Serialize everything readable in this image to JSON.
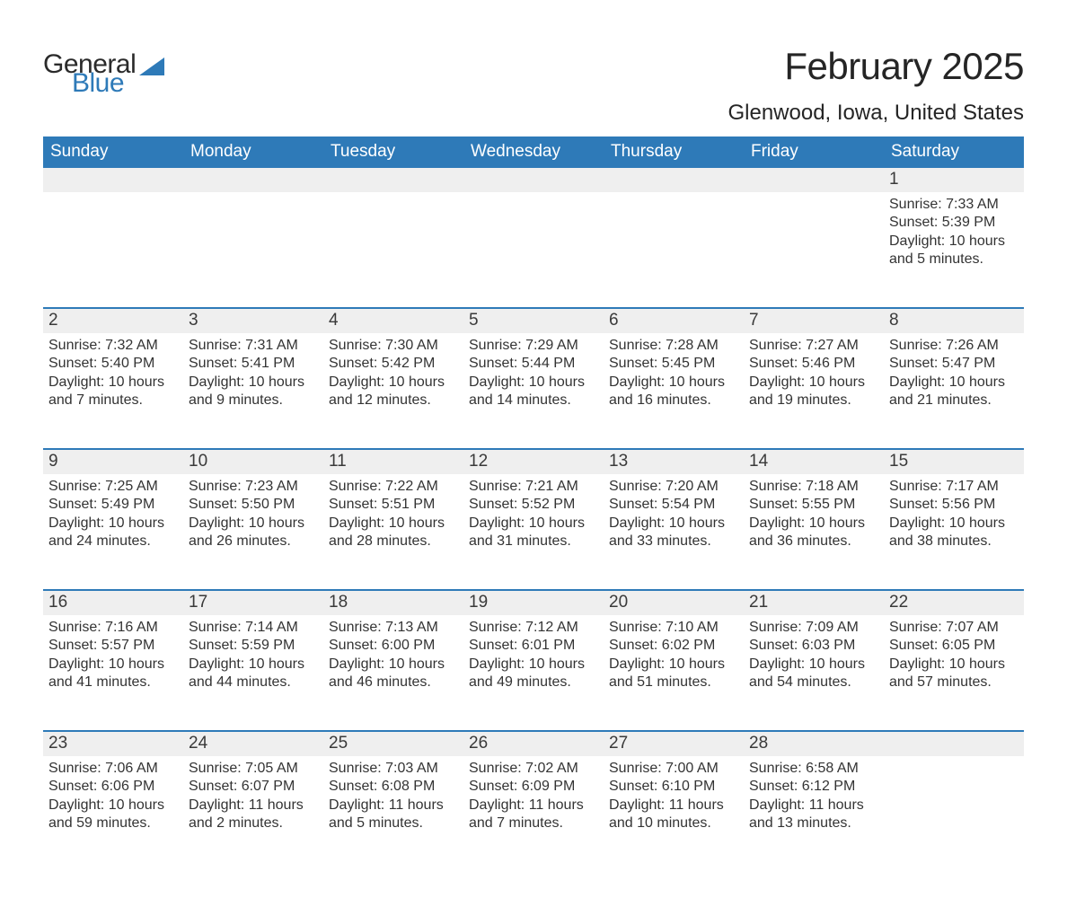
{
  "logo": {
    "text1": "General",
    "text2": "Blue",
    "glyph_color": "#2e7ab8"
  },
  "title": "February 2025",
  "location": "Glenwood, Iowa, United States",
  "colors": {
    "header_bg": "#2e7ab8",
    "header_text": "#ffffff",
    "daynum_bg": "#efefef",
    "rule": "#2e7ab8",
    "body_text": "#333333"
  },
  "typography": {
    "title_fontsize": 42,
    "location_fontsize": 24,
    "weekday_fontsize": 19,
    "daynum_fontsize": 19,
    "detail_fontsize": 16
  },
  "weekdays": [
    "Sunday",
    "Monday",
    "Tuesday",
    "Wednesday",
    "Thursday",
    "Friday",
    "Saturday"
  ],
  "weeks": [
    [
      null,
      null,
      null,
      null,
      null,
      null,
      {
        "n": "1",
        "sunrise": "Sunrise: 7:33 AM",
        "sunset": "Sunset: 5:39 PM",
        "day1": "Daylight: 10 hours",
        "day2": "and 5 minutes."
      }
    ],
    [
      {
        "n": "2",
        "sunrise": "Sunrise: 7:32 AM",
        "sunset": "Sunset: 5:40 PM",
        "day1": "Daylight: 10 hours",
        "day2": "and 7 minutes."
      },
      {
        "n": "3",
        "sunrise": "Sunrise: 7:31 AM",
        "sunset": "Sunset: 5:41 PM",
        "day1": "Daylight: 10 hours",
        "day2": "and 9 minutes."
      },
      {
        "n": "4",
        "sunrise": "Sunrise: 7:30 AM",
        "sunset": "Sunset: 5:42 PM",
        "day1": "Daylight: 10 hours",
        "day2": "and 12 minutes."
      },
      {
        "n": "5",
        "sunrise": "Sunrise: 7:29 AM",
        "sunset": "Sunset: 5:44 PM",
        "day1": "Daylight: 10 hours",
        "day2": "and 14 minutes."
      },
      {
        "n": "6",
        "sunrise": "Sunrise: 7:28 AM",
        "sunset": "Sunset: 5:45 PM",
        "day1": "Daylight: 10 hours",
        "day2": "and 16 minutes."
      },
      {
        "n": "7",
        "sunrise": "Sunrise: 7:27 AM",
        "sunset": "Sunset: 5:46 PM",
        "day1": "Daylight: 10 hours",
        "day2": "and 19 minutes."
      },
      {
        "n": "8",
        "sunrise": "Sunrise: 7:26 AM",
        "sunset": "Sunset: 5:47 PM",
        "day1": "Daylight: 10 hours",
        "day2": "and 21 minutes."
      }
    ],
    [
      {
        "n": "9",
        "sunrise": "Sunrise: 7:25 AM",
        "sunset": "Sunset: 5:49 PM",
        "day1": "Daylight: 10 hours",
        "day2": "and 24 minutes."
      },
      {
        "n": "10",
        "sunrise": "Sunrise: 7:23 AM",
        "sunset": "Sunset: 5:50 PM",
        "day1": "Daylight: 10 hours",
        "day2": "and 26 minutes."
      },
      {
        "n": "11",
        "sunrise": "Sunrise: 7:22 AM",
        "sunset": "Sunset: 5:51 PM",
        "day1": "Daylight: 10 hours",
        "day2": "and 28 minutes."
      },
      {
        "n": "12",
        "sunrise": "Sunrise: 7:21 AM",
        "sunset": "Sunset: 5:52 PM",
        "day1": "Daylight: 10 hours",
        "day2": "and 31 minutes."
      },
      {
        "n": "13",
        "sunrise": "Sunrise: 7:20 AM",
        "sunset": "Sunset: 5:54 PM",
        "day1": "Daylight: 10 hours",
        "day2": "and 33 minutes."
      },
      {
        "n": "14",
        "sunrise": "Sunrise: 7:18 AM",
        "sunset": "Sunset: 5:55 PM",
        "day1": "Daylight: 10 hours",
        "day2": "and 36 minutes."
      },
      {
        "n": "15",
        "sunrise": "Sunrise: 7:17 AM",
        "sunset": "Sunset: 5:56 PM",
        "day1": "Daylight: 10 hours",
        "day2": "and 38 minutes."
      }
    ],
    [
      {
        "n": "16",
        "sunrise": "Sunrise: 7:16 AM",
        "sunset": "Sunset: 5:57 PM",
        "day1": "Daylight: 10 hours",
        "day2": "and 41 minutes."
      },
      {
        "n": "17",
        "sunrise": "Sunrise: 7:14 AM",
        "sunset": "Sunset: 5:59 PM",
        "day1": "Daylight: 10 hours",
        "day2": "and 44 minutes."
      },
      {
        "n": "18",
        "sunrise": "Sunrise: 7:13 AM",
        "sunset": "Sunset: 6:00 PM",
        "day1": "Daylight: 10 hours",
        "day2": "and 46 minutes."
      },
      {
        "n": "19",
        "sunrise": "Sunrise: 7:12 AM",
        "sunset": "Sunset: 6:01 PM",
        "day1": "Daylight: 10 hours",
        "day2": "and 49 minutes."
      },
      {
        "n": "20",
        "sunrise": "Sunrise: 7:10 AM",
        "sunset": "Sunset: 6:02 PM",
        "day1": "Daylight: 10 hours",
        "day2": "and 51 minutes."
      },
      {
        "n": "21",
        "sunrise": "Sunrise: 7:09 AM",
        "sunset": "Sunset: 6:03 PM",
        "day1": "Daylight: 10 hours",
        "day2": "and 54 minutes."
      },
      {
        "n": "22",
        "sunrise": "Sunrise: 7:07 AM",
        "sunset": "Sunset: 6:05 PM",
        "day1": "Daylight: 10 hours",
        "day2": "and 57 minutes."
      }
    ],
    [
      {
        "n": "23",
        "sunrise": "Sunrise: 7:06 AM",
        "sunset": "Sunset: 6:06 PM",
        "day1": "Daylight: 10 hours",
        "day2": "and 59 minutes."
      },
      {
        "n": "24",
        "sunrise": "Sunrise: 7:05 AM",
        "sunset": "Sunset: 6:07 PM",
        "day1": "Daylight: 11 hours",
        "day2": "and 2 minutes."
      },
      {
        "n": "25",
        "sunrise": "Sunrise: 7:03 AM",
        "sunset": "Sunset: 6:08 PM",
        "day1": "Daylight: 11 hours",
        "day2": "and 5 minutes."
      },
      {
        "n": "26",
        "sunrise": "Sunrise: 7:02 AM",
        "sunset": "Sunset: 6:09 PM",
        "day1": "Daylight: 11 hours",
        "day2": "and 7 minutes."
      },
      {
        "n": "27",
        "sunrise": "Sunrise: 7:00 AM",
        "sunset": "Sunset: 6:10 PM",
        "day1": "Daylight: 11 hours",
        "day2": "and 10 minutes."
      },
      {
        "n": "28",
        "sunrise": "Sunrise: 6:58 AM",
        "sunset": "Sunset: 6:12 PM",
        "day1": "Daylight: 11 hours",
        "day2": "and 13 minutes."
      },
      null
    ]
  ]
}
